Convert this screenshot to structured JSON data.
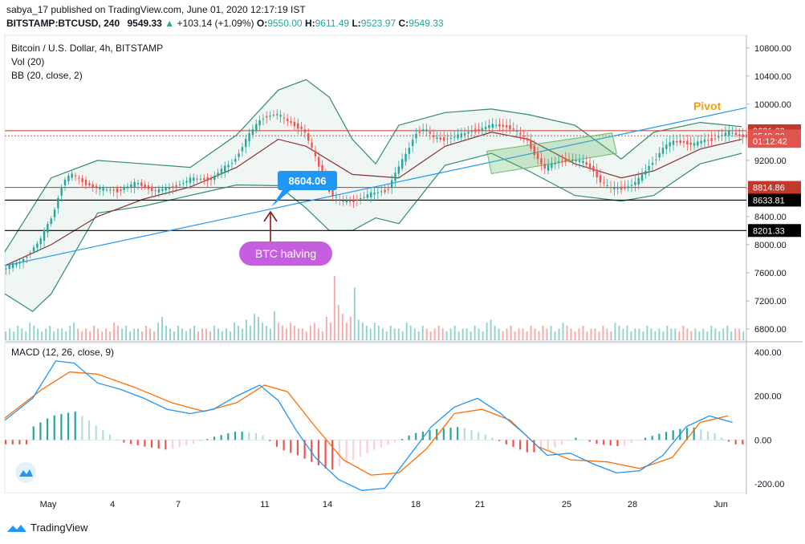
{
  "header": {
    "publish_line": "sabya_17 published on TradingView.com, June 01, 2020 12:17:19 IST",
    "symbol": "BITSTAMP:BTCUSD, 240",
    "last": "9549.33",
    "change_arrow": "▲",
    "change": "+103.14 (+1.09%)",
    "o_label": "O:",
    "o_value": "9550.00",
    "h_label": "H:",
    "h_value": "9611.49",
    "l_label": "L:",
    "l_value": "9523.97",
    "c_label": "C:",
    "c_value": "9549.33"
  },
  "legend": {
    "title": "Bitcoin / U.S. Dollar, 4h, BITSTAMP",
    "vol": "Vol (20)",
    "bb": "BB (20, close, 2)",
    "macd": "MACD (12, 26, close, 9)"
  },
  "annotations": {
    "pivot": "Pivot",
    "halving": "BTC halving",
    "price_callout": "8604.06"
  },
  "price_badges": [
    {
      "value": 9621.63,
      "text": "9621.63",
      "color": "#c0392b"
    },
    {
      "value": 9549.33,
      "text": "9549.33",
      "color": "#e0554f"
    },
    {
      "value": 9470,
      "text": "01:12:42",
      "color": "#e0554f"
    },
    {
      "value": 8814.86,
      "text": "8814.86",
      "color": "#c0392b"
    },
    {
      "value": 8633.81,
      "text": "8633.81",
      "color": "#000000"
    },
    {
      "value": 8201.33,
      "text": "8201.33",
      "color": "#000000"
    }
  ],
  "branding": {
    "name": "TradingView"
  },
  "colors": {
    "up": "#26a69a",
    "down": "#ef5350",
    "bb_mid": "#8b2f2f",
    "bb_band": "#2e8b6f",
    "trend": "#2196f3",
    "pivot": "#f39c12",
    "macd": "#2196f3",
    "signal": "#ff6d00",
    "channel": "#66bb6a",
    "callout": "#2196f3",
    "halving": "#c65ee0"
  },
  "chart_data": {
    "type": "candlestick",
    "title": "Bitcoin / U.S. Dollar, 4h, BITSTAMP",
    "price_axis": {
      "ticks": [
        6800,
        7200,
        7600,
        8000,
        8400,
        8800,
        9200,
        9600,
        10000,
        10400,
        10800
      ],
      "min": 6640,
      "max": 10980
    },
    "time_axis": {
      "labels": [
        "May",
        "4",
        "7",
        "11",
        "14",
        "18",
        "21",
        "25",
        "28",
        "Jun"
      ]
    },
    "price_path": [
      [
        0,
        7650
      ],
      [
        8,
        7760
      ],
      [
        16,
        8050
      ],
      [
        22,
        8450
      ],
      [
        26,
        8900
      ],
      [
        30,
        9000
      ],
      [
        36,
        8870
      ],
      [
        42,
        8790
      ],
      [
        50,
        8770
      ],
      [
        58,
        8880
      ],
      [
        66,
        8760
      ],
      [
        74,
        8830
      ],
      [
        82,
        8940
      ],
      [
        90,
        8930
      ],
      [
        94,
        9050
      ],
      [
        100,
        9200
      ],
      [
        106,
        9550
      ],
      [
        112,
        9810
      ],
      [
        118,
        9860
      ],
      [
        124,
        9740
      ],
      [
        130,
        9630
      ],
      [
        134,
        9320
      ],
      [
        138,
        9000
      ],
      [
        142,
        8700
      ],
      [
        146,
        8620
      ],
      [
        150,
        8610
      ],
      [
        154,
        8660
      ],
      [
        160,
        8730
      ],
      [
        166,
        8780
      ],
      [
        170,
        9050
      ],
      [
        174,
        9280
      ],
      [
        178,
        9580
      ],
      [
        182,
        9650
      ],
      [
        186,
        9520
      ],
      [
        190,
        9500
      ],
      [
        194,
        9530
      ],
      [
        198,
        9560
      ],
      [
        202,
        9620
      ],
      [
        206,
        9640
      ],
      [
        210,
        9690
      ],
      [
        214,
        9700
      ],
      [
        218,
        9680
      ],
      [
        222,
        9600
      ],
      [
        226,
        9500
      ],
      [
        230,
        9270
      ],
      [
        234,
        9080
      ],
      [
        238,
        9160
      ],
      [
        242,
        9210
      ],
      [
        246,
        9200
      ],
      [
        250,
        9180
      ],
      [
        254,
        9100
      ],
      [
        258,
        8900
      ],
      [
        262,
        8800
      ],
      [
        266,
        8800
      ],
      [
        270,
        8830
      ],
      [
        274,
        8900
      ],
      [
        278,
        9080
      ],
      [
        282,
        9240
      ],
      [
        286,
        9410
      ],
      [
        290,
        9470
      ],
      [
        294,
        9460
      ],
      [
        298,
        9420
      ],
      [
        302,
        9480
      ],
      [
        306,
        9500
      ],
      [
        310,
        9560
      ],
      [
        314,
        9600
      ],
      [
        318,
        9549
      ]
    ],
    "bb_mid": [
      [
        0,
        7700
      ],
      [
        20,
        8000
      ],
      [
        40,
        8400
      ],
      [
        60,
        8650
      ],
      [
        80,
        8820
      ],
      [
        100,
        9100
      ],
      [
        118,
        9500
      ],
      [
        130,
        9400
      ],
      [
        150,
        9000
      ],
      [
        170,
        8950
      ],
      [
        190,
        9400
      ],
      [
        210,
        9600
      ],
      [
        226,
        9500
      ],
      [
        246,
        9150
      ],
      [
        266,
        8950
      ],
      [
        280,
        9050
      ],
      [
        300,
        9360
      ],
      [
        318,
        9500
      ]
    ],
    "bb_upper": [
      [
        0,
        7900
      ],
      [
        20,
        8950
      ],
      [
        40,
        9200
      ],
      [
        60,
        9150
      ],
      [
        80,
        9100
      ],
      [
        100,
        9560
      ],
      [
        118,
        10200
      ],
      [
        130,
        10350
      ],
      [
        140,
        10100
      ],
      [
        150,
        9500
      ],
      [
        160,
        9150
      ],
      [
        170,
        9700
      ],
      [
        190,
        9880
      ],
      [
        210,
        9930
      ],
      [
        226,
        9850
      ],
      [
        246,
        9700
      ],
      [
        266,
        9220
      ],
      [
        280,
        9600
      ],
      [
        300,
        9740
      ],
      [
        318,
        9680
      ]
    ],
    "bb_lower": [
      [
        0,
        7300
      ],
      [
        12,
        7050
      ],
      [
        20,
        7300
      ],
      [
        40,
        8450
      ],
      [
        60,
        8550
      ],
      [
        80,
        8700
      ],
      [
        100,
        8850
      ],
      [
        118,
        8840
      ],
      [
        130,
        8520
      ],
      [
        140,
        8200
      ],
      [
        150,
        8200
      ],
      [
        160,
        8380
      ],
      [
        170,
        8300
      ],
      [
        190,
        9130
      ],
      [
        210,
        9300
      ],
      [
        226,
        9050
      ],
      [
        246,
        8700
      ],
      [
        266,
        8620
      ],
      [
        280,
        8700
      ],
      [
        300,
        9150
      ],
      [
        318,
        9300
      ]
    ],
    "volume": [
      3,
      4,
      3,
      5,
      4,
      3,
      6,
      5,
      4,
      3,
      4,
      5,
      3,
      4,
      4,
      3,
      5,
      6,
      4,
      3,
      4,
      3,
      5,
      4,
      3,
      4,
      3,
      6,
      5,
      4,
      5,
      3,
      4,
      4,
      3,
      5,
      4,
      3,
      6,
      8,
      5,
      4,
      3,
      5,
      4,
      3,
      4,
      5,
      3,
      4,
      4,
      3,
      5,
      4,
      3,
      4,
      3,
      6,
      5,
      4,
      7,
      5,
      9,
      8,
      6,
      5,
      4,
      10,
      6,
      5,
      4,
      6,
      5,
      4,
      4,
      3,
      5,
      6,
      4,
      3,
      8,
      6,
      22,
      12,
      9,
      6,
      8,
      18,
      7,
      6,
      5,
      4,
      6,
      5,
      4,
      3,
      5,
      4,
      4,
      3,
      6,
      5,
      4,
      3,
      5,
      4,
      3,
      4,
      5,
      4,
      3,
      4,
      5,
      3,
      4,
      4,
      3,
      5,
      4,
      3,
      6,
      7,
      5,
      4,
      3,
      4,
      5,
      3,
      4,
      4,
      3,
      5,
      4,
      3,
      5,
      4,
      5,
      3,
      4,
      6,
      5,
      4,
      3,
      4,
      5,
      3,
      4,
      4,
      3,
      5,
      4,
      3,
      6,
      5,
      4,
      5,
      3,
      4,
      4,
      3,
      5,
      4,
      3,
      4,
      3,
      5,
      4,
      4,
      3,
      5,
      4,
      3,
      4,
      3,
      4,
      3,
      5,
      4,
      3,
      4,
      5,
      3,
      4,
      4,
      3
    ],
    "macd_axis": {
      "ticks": [
        400,
        200,
        0,
        -200
      ],
      "min": -240,
      "max": 440
    },
    "macd": [
      [
        0,
        90
      ],
      [
        12,
        190
      ],
      [
        22,
        360
      ],
      [
        30,
        350
      ],
      [
        40,
        260
      ],
      [
        50,
        230
      ],
      [
        60,
        190
      ],
      [
        70,
        140
      ],
      [
        80,
        120
      ],
      [
        90,
        140
      ],
      [
        100,
        200
      ],
      [
        110,
        250
      ],
      [
        118,
        180
      ],
      [
        126,
        40
      ],
      [
        134,
        -80
      ],
      [
        144,
        -180
      ],
      [
        154,
        -230
      ],
      [
        164,
        -220
      ],
      [
        174,
        -80
      ],
      [
        184,
        60
      ],
      [
        194,
        150
      ],
      [
        204,
        190
      ],
      [
        214,
        120
      ],
      [
        224,
        30
      ],
      [
        234,
        -70
      ],
      [
        244,
        -60
      ],
      [
        254,
        -110
      ],
      [
        264,
        -150
      ],
      [
        274,
        -140
      ],
      [
        284,
        -70
      ],
      [
        294,
        60
      ],
      [
        304,
        110
      ],
      [
        314,
        80
      ]
    ],
    "signal": [
      [
        0,
        100
      ],
      [
        16,
        230
      ],
      [
        28,
        310
      ],
      [
        40,
        300
      ],
      [
        56,
        240
      ],
      [
        72,
        170
      ],
      [
        86,
        130
      ],
      [
        100,
        170
      ],
      [
        112,
        250
      ],
      [
        122,
        220
      ],
      [
        134,
        60
      ],
      [
        146,
        -90
      ],
      [
        158,
        -160
      ],
      [
        170,
        -150
      ],
      [
        182,
        -40
      ],
      [
        194,
        120
      ],
      [
        206,
        140
      ],
      [
        218,
        90
      ],
      [
        230,
        -30
      ],
      [
        244,
        -90
      ],
      [
        260,
        -100
      ],
      [
        274,
        -130
      ],
      [
        288,
        -80
      ],
      [
        300,
        80
      ],
      [
        312,
        110
      ]
    ],
    "hist": [
      [
        10,
        50
      ],
      [
        20,
        110
      ],
      [
        30,
        130
      ],
      [
        40,
        60
      ],
      [
        50,
        -10
      ],
      [
        60,
        -30
      ],
      [
        70,
        -45
      ],
      [
        80,
        -20
      ],
      [
        90,
        15
      ],
      [
        100,
        40
      ],
      [
        110,
        30
      ],
      [
        118,
        -40
      ],
      [
        126,
        -70
      ],
      [
        134,
        -110
      ],
      [
        140,
        -140
      ],
      [
        150,
        -90
      ],
      [
        160,
        -40
      ],
      [
        168,
        -10
      ],
      [
        176,
        30
      ],
      [
        186,
        50
      ],
      [
        196,
        60
      ],
      [
        206,
        30
      ],
      [
        216,
        -20
      ],
      [
        226,
        -60
      ],
      [
        236,
        -40
      ],
      [
        246,
        10
      ],
      [
        256,
        -20
      ],
      [
        266,
        -30
      ],
      [
        276,
        10
      ],
      [
        286,
        40
      ],
      [
        296,
        60
      ],
      [
        306,
        30
      ],
      [
        314,
        -20
      ]
    ]
  }
}
